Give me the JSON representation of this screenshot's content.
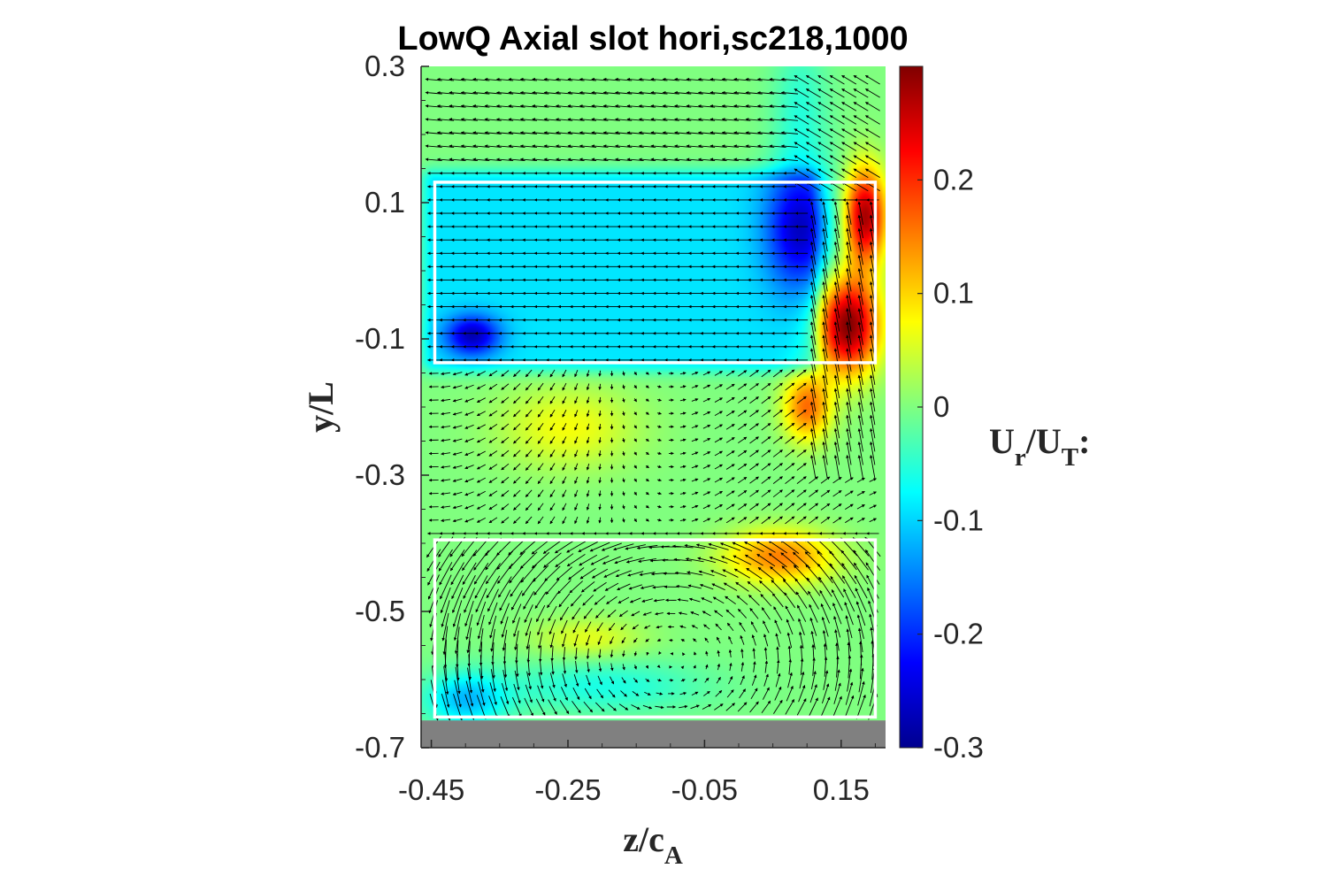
{
  "chart_data": {
    "type": "heatmap",
    "title": "LowQ Axial slot hori,sc218,1000",
    "xlabel": "z/c",
    "xlabel_sub": "A",
    "ylabel": "y/L",
    "xlim": [
      -0.465,
      0.215
    ],
    "ylim": [
      -0.7,
      0.3
    ],
    "xticks": [
      -0.45,
      -0.25,
      -0.05,
      0.15
    ],
    "xtick_labels": [
      "-0.45",
      "-0.25",
      "-0.05",
      "0.15"
    ],
    "yticks": [
      0.3,
      0.1,
      -0.1,
      -0.3,
      -0.5,
      -0.7
    ],
    "ytick_labels": [
      "0.3",
      "0.1",
      "-0.1",
      "-0.3",
      "-0.5",
      "-0.7"
    ],
    "colorbar": {
      "label_main_1": "U",
      "label_sub_1": "r",
      "label_main_2": "/U",
      "label_sub_2": "T",
      "label_suffix": ":",
      "clim": [
        -0.3,
        0.3
      ],
      "ticks": [
        0.2,
        0.1,
        0,
        -0.1,
        -0.2,
        -0.3
      ],
      "tick_labels": [
        "0.2",
        "0.1",
        "0",
        "-0.1",
        "-0.2",
        "-0.3"
      ],
      "colormap": "jet"
    },
    "slot_boxes": [
      {
        "name": "upper-slot",
        "z": [
          -0.445,
          0.2
        ],
        "y": [
          -0.135,
          0.13
        ]
      },
      {
        "name": "lower-slot",
        "z": [
          -0.445,
          0.2
        ],
        "y": [
          -0.655,
          -0.395
        ]
      }
    ],
    "wall": {
      "z": [
        -0.465,
        0.215
      ],
      "y": [
        -0.7,
        -0.66
      ]
    },
    "field": {
      "background_value": 0.0,
      "features": [
        {
          "name": "upper-slot-cyan-band",
          "z": [
            -0.445,
            0.1
          ],
          "y": [
            -0.13,
            0.13
          ],
          "value": -0.09
        },
        {
          "name": "blue-vortex-left",
          "z": -0.39,
          "y": -0.095,
          "value": -0.18,
          "rz": 0.04,
          "ry": 0.03
        },
        {
          "name": "blue-shear-upper",
          "z": 0.09,
          "y": 0.06,
          "value": -0.17,
          "rz": 0.05,
          "ry": 0.09
        },
        {
          "name": "red-jet-core",
          "z": 0.16,
          "y": -0.08,
          "value": 0.3,
          "rz": 0.045,
          "ry": 0.07
        },
        {
          "name": "red-jet-upper",
          "z": 0.185,
          "y": 0.08,
          "value": 0.28,
          "rz": 0.03,
          "ry": 0.07
        },
        {
          "name": "orange-jet-tail",
          "z": 0.1,
          "y": -0.2,
          "value": 0.16,
          "rz": 0.035,
          "ry": 0.05
        },
        {
          "name": "orange-lower-blob",
          "z": 0.06,
          "y": -0.42,
          "value": 0.15,
          "rz": 0.08,
          "ry": 0.04
        },
        {
          "name": "yellow-mid-left",
          "z": -0.25,
          "y": -0.23,
          "value": 0.07,
          "rz": 0.1,
          "ry": 0.06
        },
        {
          "name": "yellow-mid-lower",
          "z": -0.22,
          "y": -0.54,
          "value": 0.06,
          "rz": 0.08,
          "ry": 0.03
        },
        {
          "name": "cyan-lower-left",
          "z": -0.4,
          "y": -0.63,
          "value": -0.11,
          "rz": 0.06,
          "ry": 0.04
        },
        {
          "name": "cyan-lower-band",
          "z": -0.2,
          "y": -0.61,
          "value": -0.06,
          "rz": 0.15,
          "ry": 0.04
        },
        {
          "name": "cyan-top-right",
          "z": 0.09,
          "y": 0.24,
          "value": -0.05,
          "rz": 0.04,
          "ry": 0.1
        }
      ]
    },
    "vector_grid": {
      "nz": 38,
      "ny": 48,
      "scale": 0.03
    }
  }
}
